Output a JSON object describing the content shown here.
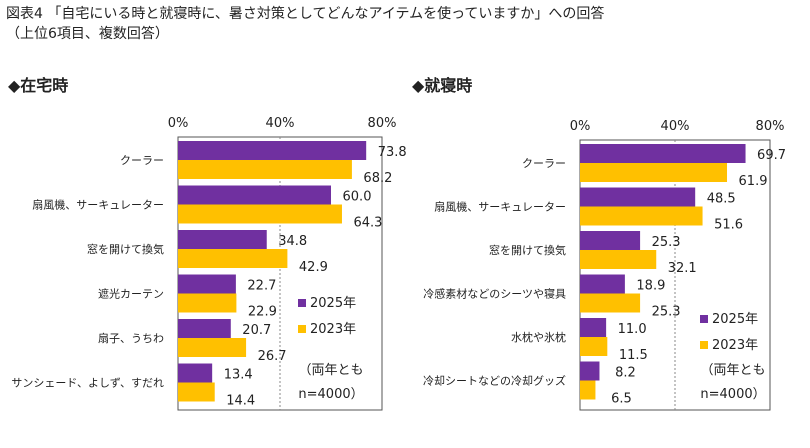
{
  "figure": {
    "title_line1": "図表4 「自宅にいる時と就寝時に、暑さ対策としてどんなアイテムを使っていますか」への回答",
    "title_line2": "（上位6項目、複数回答）"
  },
  "colors": {
    "series_2025": "#7030a0",
    "series_2023": "#ffc000"
  },
  "chart_data": [
    {
      "type": "bar",
      "orientation": "horizontal",
      "title": "◆在宅時",
      "xlim": [
        0,
        80
      ],
      "ticks": [
        "0%",
        "40%",
        "80%"
      ],
      "categories": [
        "クーラー",
        "扇風機、サーキュレーター",
        "窓を開けて換気",
        "遮光カーテン",
        "扇子、うちわ",
        "サンシェード、よしず、すだれ"
      ],
      "series": [
        {
          "name": "2025年",
          "values": [
            73.8,
            60.0,
            34.8,
            22.7,
            20.7,
            13.4
          ],
          "labels": [
            "73.8",
            "60.0",
            "34.8",
            "22.7",
            "20.7",
            "13.4"
          ]
        },
        {
          "name": "2023年",
          "values": [
            68.2,
            64.3,
            42.9,
            22.9,
            26.7,
            14.4
          ],
          "labels": [
            "68.2",
            "64.3",
            "42.9",
            "22.9",
            "26.7",
            "14.4"
          ]
        }
      ],
      "note_lines": [
        "（両年とも",
        "n=4000）"
      ]
    },
    {
      "type": "bar",
      "orientation": "horizontal",
      "title": "◆就寝時",
      "xlim": [
        0,
        80
      ],
      "ticks": [
        "0%",
        "40%",
        "80%"
      ],
      "categories": [
        "クーラー",
        "扇風機、サーキュレーター",
        "窓を開けて換気",
        "冷感素材などのシーツや寝具",
        "水枕や氷枕",
        "冷却シートなどの冷却グッズ"
      ],
      "series": [
        {
          "name": "2025年",
          "values": [
            69.7,
            48.5,
            25.3,
            18.9,
            11.0,
            8.2
          ],
          "labels": [
            "69.7",
            "48.5",
            "25.3",
            "18.9",
            "11.0",
            "8.2"
          ]
        },
        {
          "name": "2023年",
          "values": [
            61.9,
            51.6,
            32.1,
            25.3,
            11.5,
            6.5
          ],
          "labels": [
            "61.9",
            "51.6",
            "32.1",
            "25.3",
            "11.5",
            "6.5"
          ]
        }
      ],
      "note_lines": [
        "（両年とも",
        "n=4000）"
      ]
    }
  ]
}
